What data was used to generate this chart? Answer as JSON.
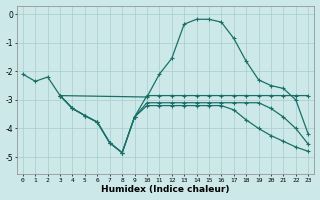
{
  "xlabel": "Humidex (Indice chaleur)",
  "xlim": [
    -0.5,
    23.5
  ],
  "ylim": [
    -5.6,
    0.3
  ],
  "yticks": [
    0,
    -1,
    -2,
    -3,
    -4,
    -5
  ],
  "xticks": [
    0,
    1,
    2,
    3,
    4,
    5,
    6,
    7,
    8,
    9,
    10,
    11,
    12,
    13,
    14,
    15,
    16,
    17,
    18,
    19,
    20,
    21,
    22,
    23
  ],
  "bg_color": "#cde8e8",
  "grid_color": "#a8cccc",
  "line_color": "#1a7068",
  "line1_x": [
    0,
    1,
    2,
    3,
    10,
    11,
    12,
    13,
    14,
    15,
    16,
    17,
    18,
    19,
    20,
    21,
    22,
    23
  ],
  "line1_y": [
    -2.1,
    -2.35,
    -2.2,
    -2.85,
    -2.9,
    -2.1,
    -1.55,
    -0.35,
    -0.18,
    -0.18,
    -0.28,
    -0.85,
    -1.65,
    -2.3,
    -2.5,
    -2.6,
    -3.0,
    -4.2
  ],
  "line2_x": [
    3,
    4,
    5,
    6,
    7,
    8,
    9,
    10,
    11,
    12,
    13,
    14,
    15,
    16,
    17,
    18,
    19,
    20,
    21,
    22,
    23
  ],
  "line2_y": [
    -2.85,
    -3.3,
    -3.55,
    -3.78,
    -4.5,
    -4.85,
    -3.6,
    -2.85,
    -2.85,
    -2.85,
    -2.85,
    -2.85,
    -2.85,
    -2.85,
    -2.85,
    -2.85,
    -2.85,
    -2.85,
    -2.85,
    -2.85,
    -2.85
  ],
  "line3_x": [
    3,
    4,
    5,
    6,
    7,
    8,
    9,
    10,
    11,
    12,
    13,
    14,
    15,
    16,
    17,
    18,
    19,
    20,
    21,
    22,
    23
  ],
  "line3_y": [
    -2.85,
    -3.3,
    -3.55,
    -3.78,
    -4.5,
    -4.85,
    -3.6,
    -3.1,
    -3.1,
    -3.1,
    -3.1,
    -3.1,
    -3.1,
    -3.1,
    -3.1,
    -3.1,
    -3.1,
    -3.3,
    -3.6,
    -4.0,
    -4.55
  ],
  "line4_x": [
    3,
    4,
    5,
    6,
    7,
    8,
    9,
    10,
    11,
    12,
    13,
    14,
    15,
    16,
    17,
    18,
    19,
    20,
    21,
    22,
    23
  ],
  "line4_y": [
    -2.85,
    -3.3,
    -3.55,
    -3.78,
    -4.5,
    -4.85,
    -3.6,
    -3.2,
    -3.2,
    -3.2,
    -3.2,
    -3.2,
    -3.2,
    -3.2,
    -3.35,
    -3.7,
    -4.0,
    -4.25,
    -4.45,
    -4.65,
    -4.8
  ]
}
